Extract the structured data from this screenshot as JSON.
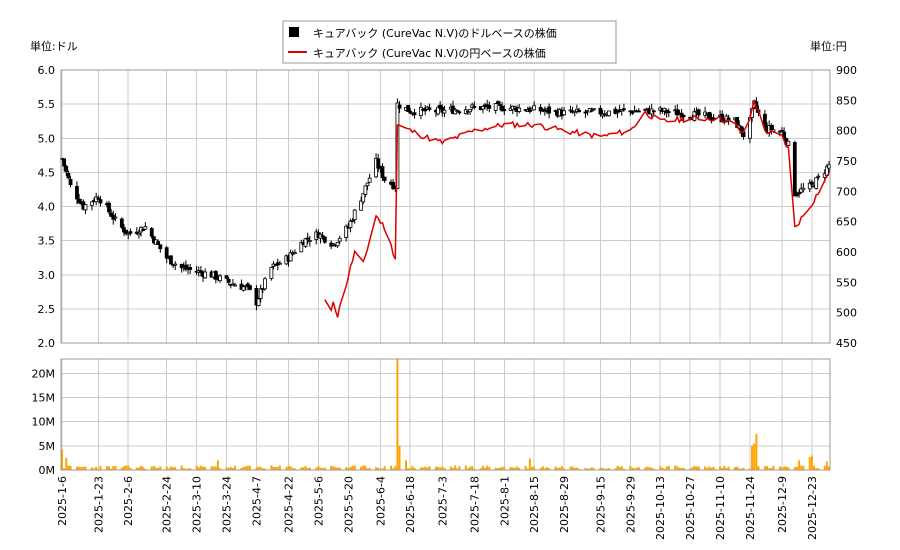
{
  "chart_data": [
    {
      "type": "candlestick",
      "title": "",
      "legend": {
        "placement": "top-center",
        "entries": [
          {
            "label": "キュアバック (CureVac N.V)のドルベースの株価",
            "color": "#000000",
            "marker": "square"
          },
          {
            "label": "キュアバック (CureVac N.V)の円ベースの株価",
            "color": "#dd0000",
            "marker": "line"
          }
        ]
      },
      "left_axis": {
        "unit_label": "単位:ドル",
        "ylim": [
          2.0,
          6.0
        ],
        "ticks": [
          "2.0",
          "2.5",
          "3.0",
          "3.5",
          "4.0",
          "4.5",
          "5.0",
          "5.5",
          "6.0"
        ]
      },
      "right_axis": {
        "unit_label": "単位:円",
        "ylim": [
          450,
          900
        ],
        "ticks": [
          "450",
          "500",
          "550",
          "600",
          "650",
          "700",
          "750",
          "800",
          "850",
          "900"
        ]
      },
      "x_ticks": [
        "2025-1-6",
        "2025-1-23",
        "2025-2-6",
        "2025-2-24",
        "2025-3-10",
        "2025-3-24",
        "2025-4-7",
        "2025-4-22",
        "2025-5-6",
        "2025-5-20",
        "2025-6-4",
        "2025-6-18",
        "2025-7-3",
        "2025-7-18",
        "2025-8-1",
        "2025-8-15",
        "2025-8-29",
        "2025-9-15",
        "2025-9-29",
        "2025-10-13",
        "2025-10-27",
        "2025-11-10",
        "2025-11-24",
        "2025-12-9",
        "2025-12-23"
      ],
      "grid": true,
      "usd_close_keypoints": [
        [
          "2025-01-06",
          4.7
        ],
        [
          "2025-01-10",
          4.3
        ],
        [
          "2025-01-16",
          4.0
        ],
        [
          "2025-01-23",
          4.15
        ],
        [
          "2025-02-01",
          3.75
        ],
        [
          "2025-02-06",
          3.6
        ],
        [
          "2025-02-14",
          3.7
        ],
        [
          "2025-02-24",
          3.25
        ],
        [
          "2025-03-03",
          3.1
        ],
        [
          "2025-03-10",
          3.05
        ],
        [
          "2025-03-17",
          3.0
        ],
        [
          "2025-03-24",
          2.9
        ],
        [
          "2025-04-03",
          2.8
        ],
        [
          "2025-04-07",
          2.6
        ],
        [
          "2025-04-14",
          3.1
        ],
        [
          "2025-04-22",
          3.25
        ],
        [
          "2025-04-29",
          3.5
        ],
        [
          "2025-05-06",
          3.6
        ],
        [
          "2025-05-13",
          3.45
        ],
        [
          "2025-05-20",
          3.7
        ],
        [
          "2025-05-27",
          4.2
        ],
        [
          "2025-06-02",
          4.65
        ],
        [
          "2025-06-06",
          4.4
        ],
        [
          "2025-06-11",
          4.3
        ],
        [
          "2025-06-12",
          5.5
        ],
        [
          "2025-06-18",
          5.4
        ],
        [
          "2025-07-03",
          5.4
        ],
        [
          "2025-07-18",
          5.45
        ],
        [
          "2025-08-01",
          5.45
        ],
        [
          "2025-08-15",
          5.42
        ],
        [
          "2025-08-29",
          5.37
        ],
        [
          "2025-09-15",
          5.38
        ],
        [
          "2025-09-29",
          5.4
        ],
        [
          "2025-10-13",
          5.4
        ],
        [
          "2025-10-27",
          5.35
        ],
        [
          "2025-11-10",
          5.3
        ],
        [
          "2025-11-17",
          5.25
        ],
        [
          "2025-11-22",
          5.0
        ],
        [
          "2025-11-26",
          5.5
        ],
        [
          "2025-12-01",
          5.15
        ],
        [
          "2025-12-09",
          5.1
        ],
        [
          "2025-12-12",
          4.9
        ],
        [
          "2025-12-15",
          4.2
        ],
        [
          "2025-12-23",
          4.3
        ],
        [
          "2025-12-31",
          4.6
        ]
      ],
      "jpy_line_keypoints": [
        [
          "2025-05-09",
          520
        ],
        [
          "2025-05-12",
          500
        ],
        [
          "2025-05-13",
          520
        ],
        [
          "2025-05-15",
          495
        ],
        [
          "2025-05-20",
          560
        ],
        [
          "2025-05-23",
          600
        ],
        [
          "2025-05-27",
          580
        ],
        [
          "2025-06-02",
          660
        ],
        [
          "2025-06-06",
          640
        ],
        [
          "2025-06-11",
          590
        ],
        [
          "2025-06-12",
          810
        ],
        [
          "2025-06-18",
          800
        ],
        [
          "2025-06-25",
          790
        ],
        [
          "2025-07-03",
          780
        ],
        [
          "2025-07-18",
          800
        ],
        [
          "2025-08-01",
          810
        ],
        [
          "2025-08-15",
          810
        ],
        [
          "2025-08-29",
          800
        ],
        [
          "2025-09-15",
          790
        ],
        [
          "2025-09-29",
          800
        ],
        [
          "2025-10-06",
          830
        ],
        [
          "2025-10-13",
          815
        ],
        [
          "2025-10-27",
          820
        ],
        [
          "2025-11-10",
          820
        ],
        [
          "2025-11-17",
          810
        ],
        [
          "2025-11-22",
          790
        ],
        [
          "2025-11-26",
          850
        ],
        [
          "2025-12-01",
          800
        ],
        [
          "2025-12-09",
          790
        ],
        [
          "2025-12-12",
          770
        ],
        [
          "2025-12-15",
          640
        ],
        [
          "2025-12-23",
          680
        ],
        [
          "2025-12-31",
          730
        ]
      ]
    },
    {
      "type": "bar",
      "title": "",
      "ylim": [
        0,
        23000000
      ],
      "y_ticks": [
        "0M",
        "5M",
        "10M",
        "15M",
        "20M"
      ],
      "color": "#ffa500",
      "volume_keypoints": [
        [
          "2025-01-06",
          4200000
        ],
        [
          "2025-01-08",
          2500000
        ],
        [
          "2025-03-20",
          2000000
        ],
        [
          "2025-06-12",
          23000000
        ],
        [
          "2025-06-13",
          5000000
        ],
        [
          "2025-06-16",
          2000000
        ],
        [
          "2025-08-13",
          2400000
        ],
        [
          "2025-11-25",
          5000000
        ],
        [
          "2025-11-26",
          5500000
        ],
        [
          "2025-11-27",
          7500000
        ],
        [
          "2025-12-17",
          2000000
        ],
        [
          "2025-12-22",
          2700000
        ],
        [
          "2025-12-23",
          3000000
        ],
        [
          "2025-12-30",
          1800000
        ]
      ],
      "baseline_volume": 600000
    }
  ]
}
